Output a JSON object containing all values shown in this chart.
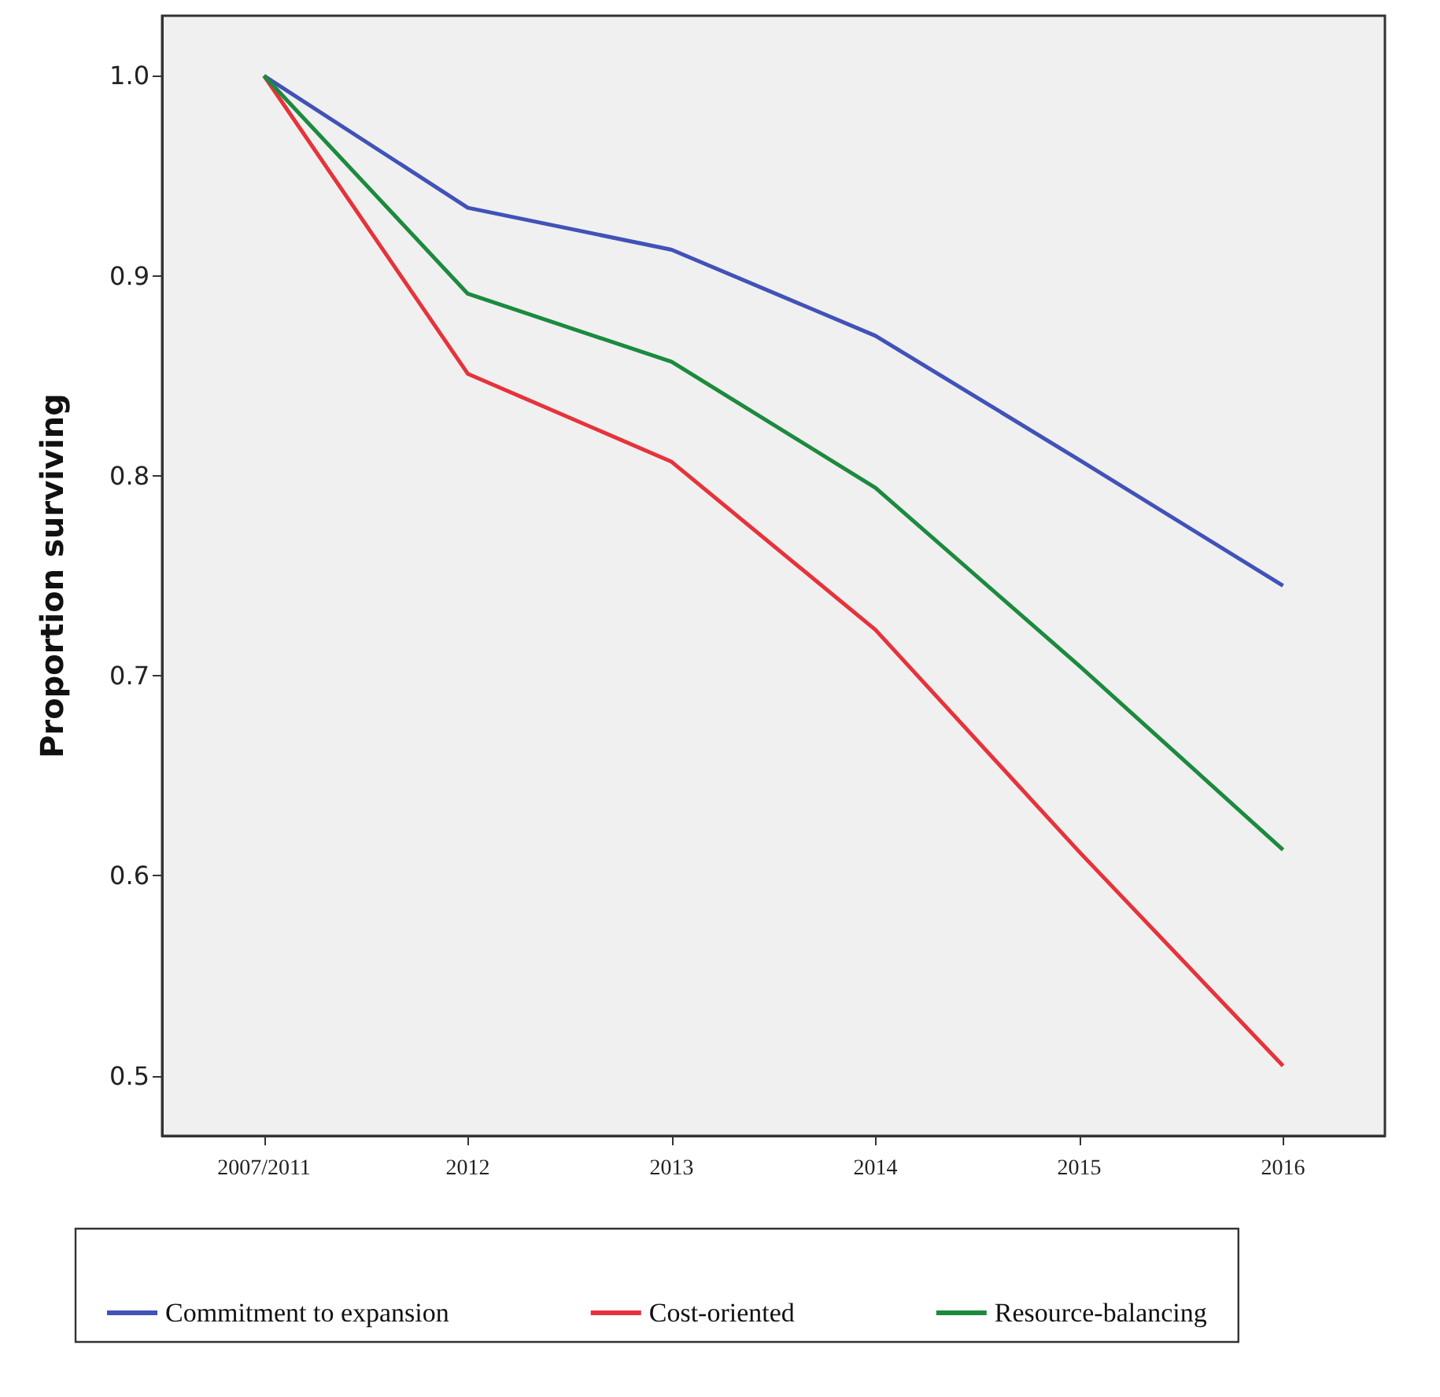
{
  "chart_data": {
    "type": "line",
    "ylabel": "Proportion surviving",
    "categories": [
      "2007/2011",
      "2012",
      "2013",
      "2014",
      "2015",
      "2016"
    ],
    "series": [
      {
        "name": "Commitment to expansion",
        "color": "#4152b8",
        "values": [
          1.0,
          0.934,
          0.913,
          0.87,
          0.808,
          0.745
        ]
      },
      {
        "name": "Cost-oriented",
        "color": "#e6333b",
        "values": [
          1.0,
          0.851,
          0.807,
          0.723,
          0.612,
          0.505
        ]
      },
      {
        "name": "Resource-balancing",
        "color": "#1c8a3e",
        "values": [
          1.0,
          0.891,
          0.857,
          0.794,
          0.705,
          0.613
        ]
      }
    ],
    "ylim": [
      0.47,
      1.03
    ],
    "yticks": [
      0.5,
      0.6,
      0.7,
      0.8,
      0.9,
      {
        "value": 1,
        "label": "1.0"
      }
    ],
    "grid": false,
    "legend": "bottom",
    "marker": "none",
    "line_style": "solid"
  }
}
